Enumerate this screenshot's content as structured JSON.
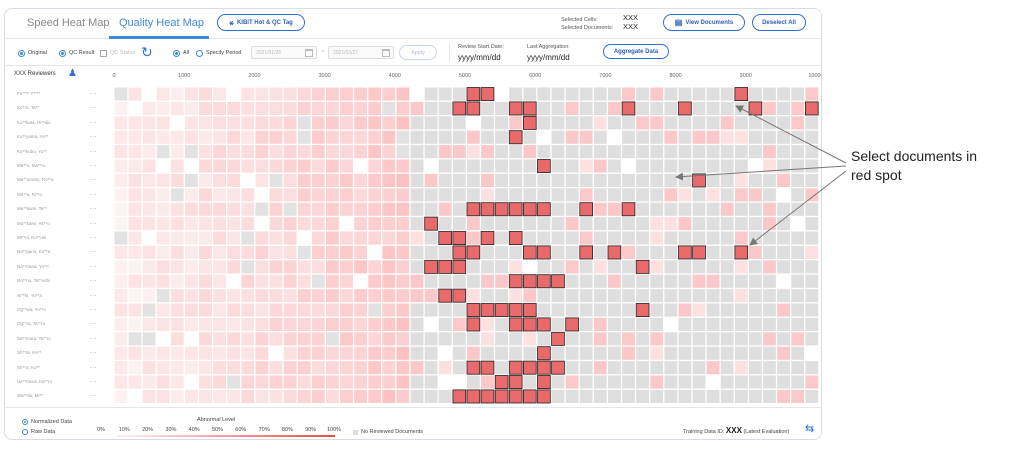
{
  "header": {
    "tabs": [
      {
        "label": "Speed Heat Map",
        "active": false
      },
      {
        "label": "Quality Heat Map",
        "active": true
      }
    ],
    "tag_button_label": "KIBIT Hot & QC Tag",
    "selected_cells_label": "Selected Cells:",
    "selected_documents_label": "Selected Documents:",
    "selected_cells_value": "XXX",
    "selected_documents_value": "XXX",
    "view_documents_label": "View Documents",
    "deselect_all_label": "Deselect All"
  },
  "filter": {
    "original_label": "Original",
    "qc_result_label": "QC Result",
    "qc_status_label": "QC Status",
    "all_label": "All",
    "specify_period_label": "Specify Period",
    "date_from": "2021/01/26",
    "date_to": "2021/03/27",
    "apply_label": "Apply",
    "review_start_label": "Review Start Date:",
    "review_start_value": "yyyy/mm/dd",
    "last_aggregation_label": "Last Aggregation:",
    "last_aggregation_value": "yyyy/mm/dd",
    "aggregate_label": "Aggregate Data"
  },
  "grid": {
    "reviewers_header": "XXX Reviewers",
    "x_ticks": [
      "0",
      "1000",
      "2000",
      "3000",
      "4000",
      "5000",
      "6000",
      "7000",
      "8000",
      "9000",
      "10000"
    ],
    "reviewers": [
      "Fu**** Y****",
      "Ko**a, Ta**",
      "Ku**kata, Hi**aki",
      "Ku**yama, Yu**",
      "Ku**kubo, Yu**",
      "Ma**o, Ma**ru",
      "Ma**umoto, Ro**u",
      "Mo**a, Ri**o",
      "Mu**kami, Ta**",
      "Mu**kami, Ak**o",
      "Mi**ni, Ko**uki",
      "Na**gano, Ko**e",
      "Na**mura, Yo**i",
      "Na**no, Ta**ushi",
      "Ni**hi, Yu**a",
      "Og**wa, Yu**o",
      "Og**ra, Ta**ro",
      "Sa**mura, Ta**ro",
      "Sh**ta, Ke**",
      "Sh**a, Ko**",
      "Ue**mura, Ka**ro",
      "Wa**da, Mi**"
    ],
    "selected_cells": [
      [
        0,
        25
      ],
      [
        0,
        26
      ],
      [
        0,
        44
      ],
      [
        1,
        24
      ],
      [
        1,
        25
      ],
      [
        1,
        28
      ],
      [
        1,
        29
      ],
      [
        1,
        36
      ],
      [
        1,
        40
      ],
      [
        1,
        45
      ],
      [
        1,
        49
      ],
      [
        2,
        29
      ],
      [
        3,
        28
      ],
      [
        5,
        30
      ],
      [
        6,
        41
      ],
      [
        8,
        25
      ],
      [
        8,
        26
      ],
      [
        8,
        27
      ],
      [
        8,
        28
      ],
      [
        8,
        29
      ],
      [
        8,
        30
      ],
      [
        8,
        33
      ],
      [
        8,
        36
      ],
      [
        9,
        22
      ],
      [
        10,
        23
      ],
      [
        10,
        24
      ],
      [
        10,
        26
      ],
      [
        10,
        28
      ],
      [
        11,
        24
      ],
      [
        11,
        25
      ],
      [
        11,
        29
      ],
      [
        11,
        30
      ],
      [
        11,
        33
      ],
      [
        11,
        35
      ],
      [
        11,
        40
      ],
      [
        11,
        41
      ],
      [
        11,
        44
      ],
      [
        12,
        22
      ],
      [
        12,
        23
      ],
      [
        12,
        24
      ],
      [
        12,
        37
      ],
      [
        13,
        28
      ],
      [
        13,
        29
      ],
      [
        13,
        30
      ],
      [
        13,
        31
      ],
      [
        14,
        23
      ],
      [
        14,
        24
      ],
      [
        15,
        25
      ],
      [
        15,
        26
      ],
      [
        15,
        27
      ],
      [
        15,
        28
      ],
      [
        15,
        29
      ],
      [
        15,
        37
      ],
      [
        16,
        25
      ],
      [
        16,
        28
      ],
      [
        16,
        29
      ],
      [
        16,
        30
      ],
      [
        16,
        32
      ],
      [
        17,
        31
      ],
      [
        18,
        30
      ],
      [
        19,
        25
      ],
      [
        19,
        26
      ],
      [
        19,
        28
      ],
      [
        19,
        29
      ],
      [
        19,
        30
      ],
      [
        19,
        31
      ],
      [
        20,
        27
      ],
      [
        20,
        28
      ],
      [
        20,
        30
      ],
      [
        21,
        24
      ],
      [
        21,
        25
      ],
      [
        21,
        26
      ],
      [
        21,
        27
      ],
      [
        21,
        28
      ],
      [
        21,
        29
      ],
      [
        21,
        30
      ]
    ]
  },
  "footer": {
    "normalized_label": "Normalized Data",
    "raw_label": "Raw Data",
    "legend_title": "Abnormal Level",
    "legend_steps": [
      "0%",
      "10%",
      "20%",
      "30%",
      "40%",
      "50%",
      "60%",
      "70%",
      "80%",
      "90%",
      "100%"
    ],
    "no_reviewed_label": "No Reviewed Documents",
    "training_prefix": "Training Data ID:",
    "training_id": "XXX",
    "training_suffix": "(Latest Evaluation)"
  },
  "annotation": {
    "line1": "Select documents in",
    "line2": "red spot"
  },
  "colors": {
    "accent": "#2f6fd6",
    "selected_fill": "#e96a6a",
    "empty_cell": "#dedede"
  }
}
